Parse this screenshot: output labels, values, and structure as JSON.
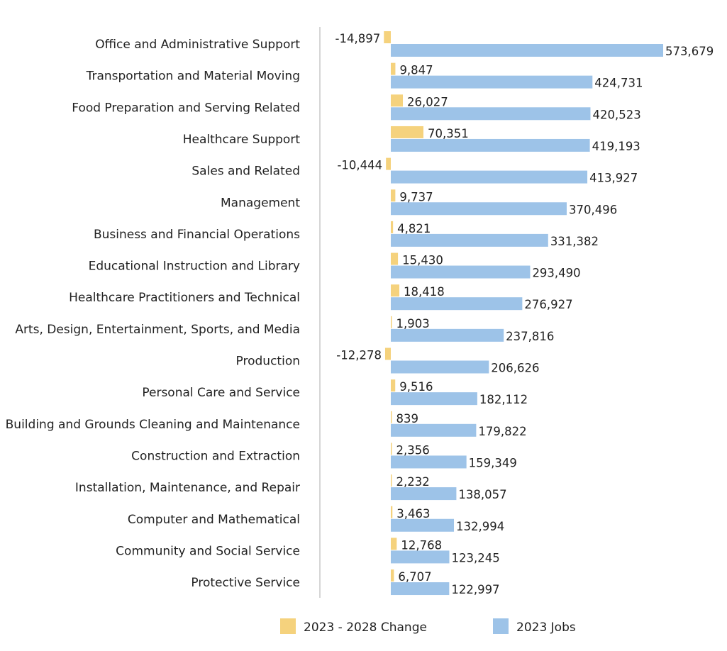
{
  "chart_data": {
    "type": "bar",
    "orientation": "horizontal",
    "categories": [
      "Office and Administrative Support",
      "Transportation and Material Moving",
      "Food Preparation and Serving Related",
      "Healthcare Support",
      "Sales and Related",
      "Management",
      "Business and Financial Operations",
      "Educational Instruction and Library",
      "Healthcare Practitioners and Technical",
      "Arts, Design, Entertainment, Sports, and Media",
      "Production",
      "Personal Care and Service",
      "Building and Grounds Cleaning and Maintenance",
      "Construction and Extraction",
      "Installation, Maintenance, and Repair",
      "Computer and Mathematical",
      "Community and Social Service",
      "Protective Service"
    ],
    "series": [
      {
        "name": "2023 - 2028 Change",
        "color": "#F5D27D",
        "values": [
          -14897,
          9847,
          26027,
          70351,
          -10444,
          9737,
          4821,
          15430,
          18418,
          1903,
          -12278,
          9516,
          839,
          2356,
          2232,
          3463,
          12768,
          6707
        ],
        "labels": [
          "-14,897",
          "9,847",
          "26,027",
          "70,351",
          "-10,444",
          "9,737",
          "4,821",
          "15,430",
          "18,418",
          "1,903",
          "-12,278",
          "9,516",
          "839",
          "2,356",
          "2,232",
          "3,463",
          "12,768",
          "6,707"
        ]
      },
      {
        "name": "2023 Jobs",
        "color": "#9DC3E8",
        "values": [
          573679,
          424731,
          420523,
          419193,
          413927,
          370496,
          331382,
          293490,
          276927,
          237816,
          206626,
          182112,
          179822,
          159349,
          138057,
          132994,
          123245,
          122997
        ],
        "labels": [
          "573,679",
          "424,731",
          "420,523",
          "419,193",
          "413,927",
          "370,496",
          "331,382",
          "293,490",
          "276,927",
          "237,816",
          "206,626",
          "182,112",
          "179,822",
          "159,349",
          "138,057",
          "132,994",
          "123,245",
          "122,997"
        ]
      }
    ],
    "legend": {
      "position": "bottom-center"
    },
    "grid": false,
    "axis_line_color": "#C8C8C8"
  }
}
